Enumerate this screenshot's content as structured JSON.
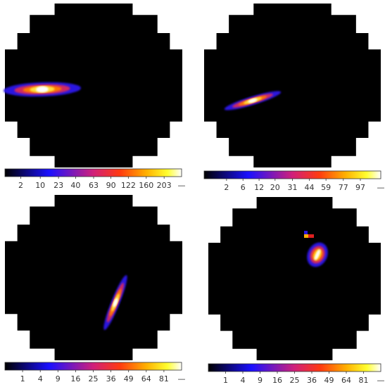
{
  "chart_data": [
    {
      "type": "heatmap",
      "colorbar": {
        "scale": "sqrt",
        "lim": [
          0,
          250
        ],
        "ticks": [
          2,
          10,
          23,
          40,
          63,
          90,
          122,
          160,
          203
        ],
        "end_label": "—"
      }
    },
    {
      "type": "heatmap",
      "colorbar": {
        "scale": "sqrt",
        "lim": [
          0,
          124
        ],
        "ticks": [
          2,
          6,
          12,
          20,
          31,
          44,
          59,
          77,
          97
        ],
        "end_label": "—"
      }
    },
    {
      "type": "heatmap",
      "colorbar": {
        "scale": "sqrt",
        "lim": [
          0,
          100
        ],
        "ticks": [
          1,
          4,
          9,
          16,
          25,
          36,
          49,
          64,
          81
        ],
        "end_label": "—"
      }
    },
    {
      "type": "heatmap",
      "colorbar": {
        "scale": "sqrt",
        "lim": [
          0,
          100
        ],
        "ticks": [
          1,
          4,
          9,
          16,
          25,
          36,
          49,
          64,
          81
        ],
        "end_label": "—"
      }
    }
  ]
}
